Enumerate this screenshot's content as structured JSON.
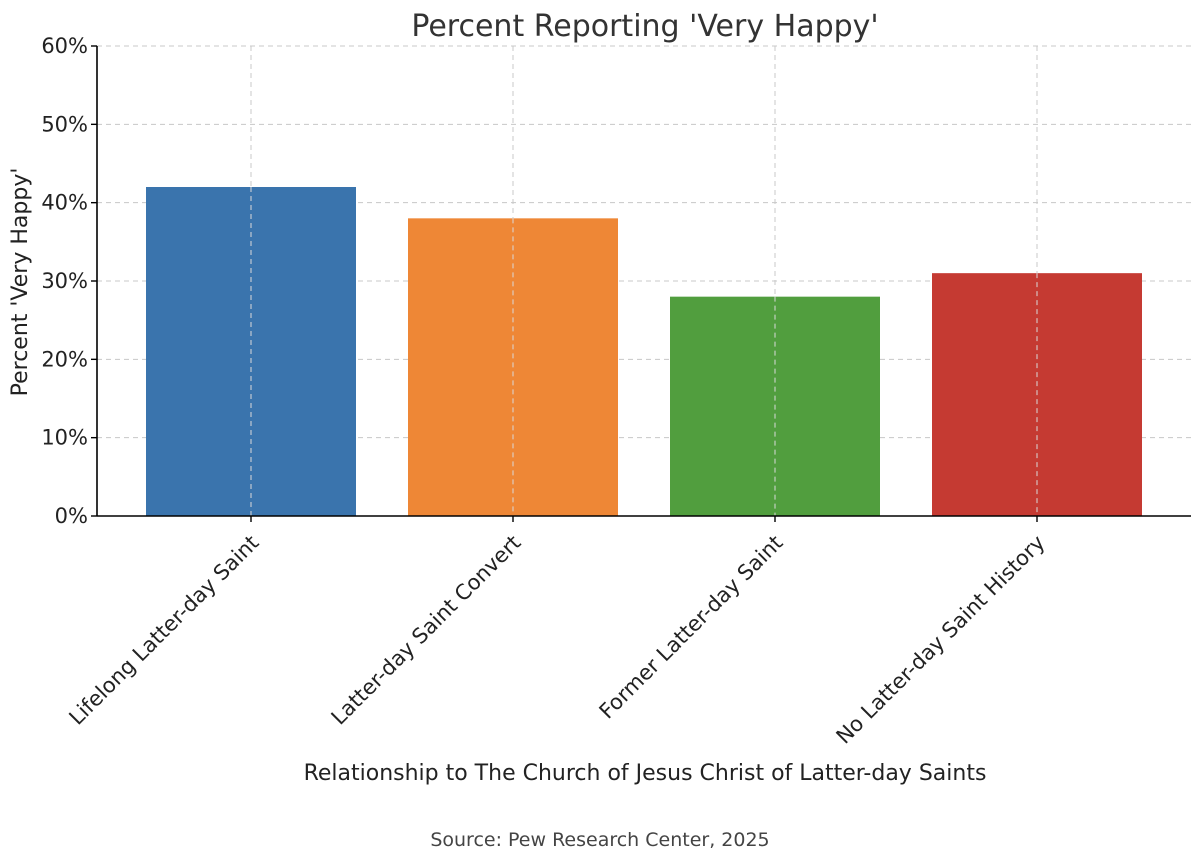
{
  "chart_data": {
    "type": "bar",
    "title": "Percent Reporting 'Very Happy'",
    "xlabel": "Relationship to The Church of Jesus Christ of Latter-day Saints",
    "ylabel": "Percent 'Very Happy'",
    "categories": [
      "Lifelong Latter-day Saint",
      "Latter-day Saint Convert",
      "Former Latter-day Saint",
      "No Latter-day Saint History"
    ],
    "values": [
      42,
      38,
      28,
      31
    ],
    "colors": [
      "#3a74ad",
      "#ee8736",
      "#519e3e",
      "#c53a32"
    ],
    "ylim": [
      0,
      60
    ],
    "yticks": [
      0,
      10,
      20,
      30,
      40,
      50,
      60
    ],
    "ytick_labels": [
      "0%",
      "10%",
      "20%",
      "30%",
      "40%",
      "50%",
      "60%"
    ],
    "grid": true,
    "source": "Source: Pew Research Center, 2025"
  }
}
